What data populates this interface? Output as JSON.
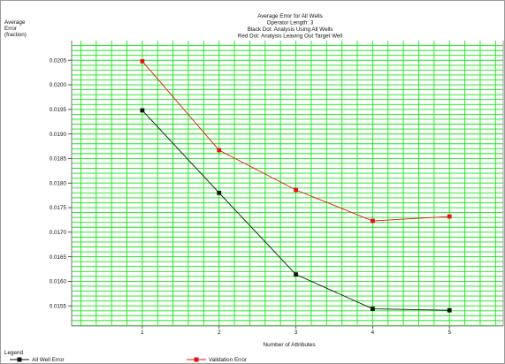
{
  "chart_data": {
    "type": "line",
    "title": "Average Error for All Wells",
    "subtitles": [
      "Operator Length: 3",
      "Black Dot: Analysis Using All Wells",
      "Red Dot: Analysis Leaving Out Target Well"
    ],
    "ylabel_lines": [
      "Average",
      "Error",
      "(fraction)"
    ],
    "xlabel": "Number of Attributes",
    "x": [
      1,
      2,
      3,
      4,
      5
    ],
    "x_ticks": [
      "1",
      "2",
      "3",
      "4",
      "5"
    ],
    "y_ticks": [
      "0.0155",
      "0.0160",
      "0.0165",
      "0.0170",
      "0.0175",
      "0.0180",
      "0.0185",
      "0.0190",
      "0.0195",
      "0.0200",
      "0.0205"
    ],
    "y_tick_values": [
      0.0155,
      0.016,
      0.0165,
      0.017,
      0.0175,
      0.018,
      0.0185,
      0.019,
      0.0195,
      0.02,
      0.0205
    ],
    "xlim": [
      0.08,
      5.7
    ],
    "ylim": [
      0.01509,
      0.0209
    ],
    "grid": true,
    "grid_color": "#19e619",
    "legend_title": "Legend",
    "legend_position": "bottom",
    "series": [
      {
        "name": "All Well Error",
        "color": "#111111",
        "values": [
          0.01948,
          0.0178,
          0.01614,
          0.01544,
          0.01541
        ]
      },
      {
        "name": "Validation Error",
        "color": "#e01515",
        "values": [
          0.02048,
          0.01867,
          0.01786,
          0.01723,
          0.01732
        ]
      }
    ]
  }
}
